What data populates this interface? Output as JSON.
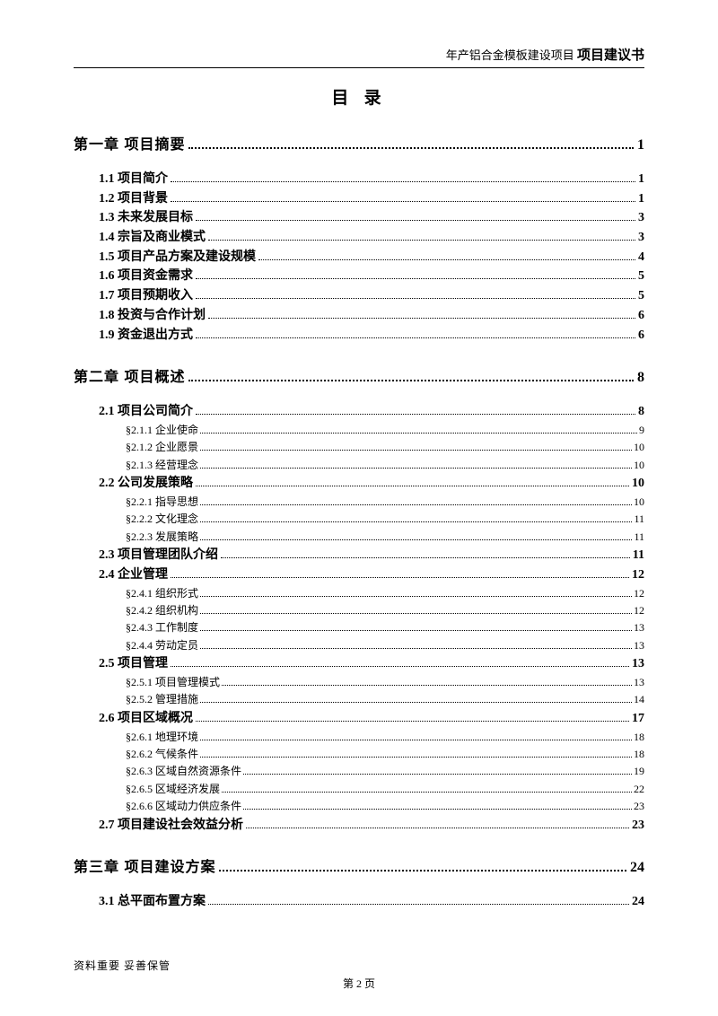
{
  "header": {
    "prefix": "年产铝合金模板建设项目",
    "bold": "项目建议书"
  },
  "title": "目 录",
  "toc": [
    {
      "level": 1,
      "label": "第一章 项目摘要",
      "page": "1"
    },
    {
      "level": 2,
      "label": "1.1 项目简介",
      "page": "1"
    },
    {
      "level": 2,
      "label": "1.2 项目背景",
      "page": "1"
    },
    {
      "level": 2,
      "label": "1.3 未来发展目标",
      "page": "3"
    },
    {
      "level": 2,
      "label": "1.4 宗旨及商业模式",
      "page": "3"
    },
    {
      "level": 2,
      "label": "1.5 项目产品方案及建设规模",
      "page": "4"
    },
    {
      "level": 2,
      "label": "1.6 项目资金需求",
      "page": "5"
    },
    {
      "level": 2,
      "label": "1.7 项目预期收入",
      "page": "5"
    },
    {
      "level": 2,
      "label": "1.8 投资与合作计划",
      "page": "6"
    },
    {
      "level": 2,
      "label": "1.9 资金退出方式",
      "page": "6"
    },
    {
      "level": 1,
      "label": "第二章 项目概述",
      "page": "8"
    },
    {
      "level": 2,
      "label": "2.1 项目公司简介",
      "page": "8"
    },
    {
      "level": 3,
      "label": "§2.1.1 企业使命",
      "page": "9"
    },
    {
      "level": 3,
      "label": "§2.1.2 企业愿景",
      "page": "10"
    },
    {
      "level": 3,
      "label": "§2.1.3 经营理念",
      "page": "10"
    },
    {
      "level": 2,
      "label": "2.2 公司发展策略",
      "page": "10"
    },
    {
      "level": 3,
      "label": "§2.2.1 指导思想",
      "page": "10"
    },
    {
      "level": 3,
      "label": "§2.2.2 文化理念",
      "page": "11"
    },
    {
      "level": 3,
      "label": "§2.2.3 发展策略",
      "page": "11"
    },
    {
      "level": 2,
      "label": "2.3 项目管理团队介绍",
      "page": "11"
    },
    {
      "level": 2,
      "label": "2.4 企业管理",
      "page": "12"
    },
    {
      "level": 3,
      "label": "§2.4.1 组织形式",
      "page": "12"
    },
    {
      "level": 3,
      "label": "§2.4.2 组织机构",
      "page": "12"
    },
    {
      "level": 3,
      "label": "§2.4.3 工作制度",
      "page": "13"
    },
    {
      "level": 3,
      "label": "§2.4.4 劳动定员",
      "page": "13"
    },
    {
      "level": 2,
      "label": "2.5 项目管理",
      "page": "13"
    },
    {
      "level": 3,
      "label": "§2.5.1 项目管理模式",
      "page": "13"
    },
    {
      "level": 3,
      "label": "§2.5.2 管理措施",
      "page": "14"
    },
    {
      "level": 2,
      "label": "2.6 项目区域概况",
      "page": "17"
    },
    {
      "level": 3,
      "label": "§2.6.1 地理环境",
      "page": "18"
    },
    {
      "level": 3,
      "label": "§2.6.2 气候条件",
      "page": "18"
    },
    {
      "level": 3,
      "label": "§2.6.3 区域自然资源条件",
      "page": "19"
    },
    {
      "level": 3,
      "label": "§2.6.5 区域经济发展",
      "page": "22"
    },
    {
      "level": 3,
      "label": "§2.6.6 区域动力供应条件",
      "page": "23"
    },
    {
      "level": 2,
      "label": "2.7 项目建设社会效益分析",
      "page": "23"
    },
    {
      "level": 1,
      "label": "第三章 项目建设方案",
      "page": "24"
    },
    {
      "level": 2,
      "label": "3.1 总平面布置方案",
      "page": "24"
    }
  ],
  "footer": {
    "note": "资料重要  妥善保管",
    "page": "第 2 页"
  }
}
